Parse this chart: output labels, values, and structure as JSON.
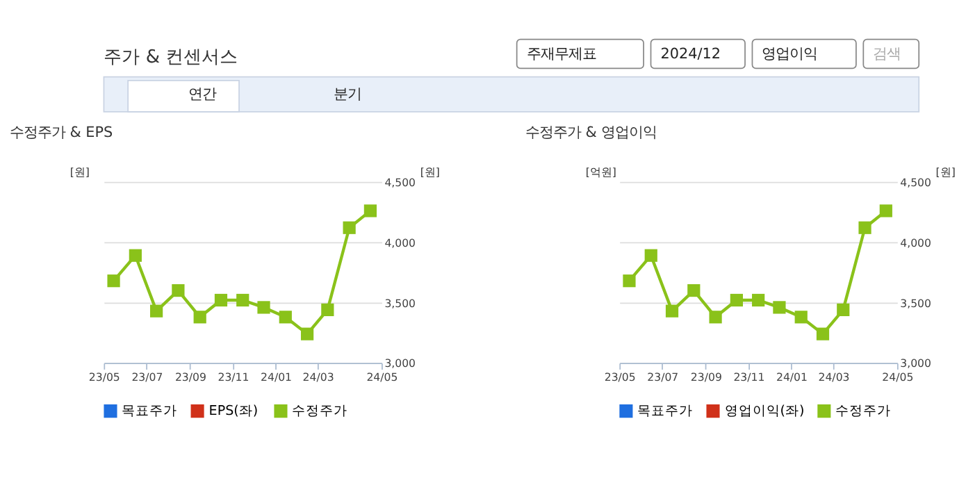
{
  "chart_data": [
    {
      "type": "line",
      "title": "수정주가 & EPS",
      "annotations": [
        "주가 & 컨센서스",
        "주재무제표",
        "2024/12",
        "영업이익",
        "검색",
        "연간",
        "분기"
      ],
      "ylabel": "[원]",
      "y2label": "[원]",
      "legend": "bottom",
      "grid": "y",
      "marker": "square",
      "x": [
        "2023-05-15",
        "2023-06-15",
        "2023-07-15",
        "2023-08-15",
        "2023-09-15",
        "2023-10-15",
        "2023-11-15",
        "2023-12-15",
        "2024-01-15",
        "2024-02-15",
        "2024-03-15",
        "2024-04-15",
        "2024-05-15"
      ],
      "xlim": [
        "2023-05-01",
        "2024-05-31"
      ],
      "xticks": [
        {
          "value": "2023-05-01",
          "label": "23/05"
        },
        {
          "value": "2023-07-01",
          "label": "23/07"
        },
        {
          "value": "2023-09-01",
          "label": "23/09"
        },
        {
          "value": "2023-11-01",
          "label": "23/11"
        },
        {
          "value": "2024-01-01",
          "label": "24/01"
        },
        {
          "value": "2024-03-01",
          "label": "24/03"
        },
        {
          "value": "2024-05-31",
          "label": "24/05"
        }
      ],
      "y2lim": [
        3000,
        4500
      ],
      "y2ticks": [
        {
          "value": 3000,
          "label": "3,000"
        },
        {
          "value": 3500,
          "label": "3,500"
        },
        {
          "value": 4000,
          "label": "4,000"
        },
        {
          "value": 4500,
          "label": "4,500"
        }
      ],
      "series": [
        {
          "name": "목표주가",
          "color": "#1f6fe0",
          "values": [
            null,
            null,
            null,
            null,
            null,
            null,
            null,
            null,
            null,
            null,
            null,
            null,
            null
          ]
        },
        {
          "name": "EPS(좌)",
          "color": "#d0311a",
          "values": [
            null,
            null,
            null,
            null,
            null,
            null,
            null,
            null,
            null,
            null,
            null,
            null,
            null
          ]
        },
        {
          "name": "수정주가",
          "color": "#8ac21a",
          "axis": "y2",
          "values": [
            3680,
            3890,
            3430,
            3600,
            3380,
            3520,
            3520,
            3460,
            3380,
            3240,
            3440,
            4120,
            4260
          ]
        }
      ]
    },
    {
      "type": "line",
      "title": "수정주가 & 영업이익",
      "ylabel": "[억원]",
      "y2label": "[원]",
      "legend": "bottom",
      "grid": "y",
      "marker": "square",
      "x": [
        "2023-05-15",
        "2023-06-15",
        "2023-07-15",
        "2023-08-15",
        "2023-09-15",
        "2023-10-15",
        "2023-11-15",
        "2023-12-15",
        "2024-01-15",
        "2024-02-15",
        "2024-03-15",
        "2024-04-15",
        "2024-05-15"
      ],
      "xlim": [
        "2023-05-01",
        "2024-05-31"
      ],
      "xticks": [
        {
          "value": "2023-05-01",
          "label": "23/05"
        },
        {
          "value": "2023-07-01",
          "label": "23/07"
        },
        {
          "value": "2023-09-01",
          "label": "23/09"
        },
        {
          "value": "2023-11-01",
          "label": "23/11"
        },
        {
          "value": "2024-01-01",
          "label": "24/01"
        },
        {
          "value": "2024-03-01",
          "label": "24/03"
        },
        {
          "value": "2024-05-31",
          "label": "24/05"
        }
      ],
      "y2lim": [
        3000,
        4500
      ],
      "y2ticks": [
        {
          "value": 3000,
          "label": "3,000"
        },
        {
          "value": 3500,
          "label": "3,500"
        },
        {
          "value": 4000,
          "label": "4,000"
        },
        {
          "value": 4500,
          "label": "4,500"
        }
      ],
      "series": [
        {
          "name": "목표주가",
          "color": "#1f6fe0",
          "values": [
            null,
            null,
            null,
            null,
            null,
            null,
            null,
            null,
            null,
            null,
            null,
            null,
            null
          ]
        },
        {
          "name": "영업이익(좌)",
          "color": "#d0311a",
          "values": [
            null,
            null,
            null,
            null,
            null,
            null,
            null,
            null,
            null,
            null,
            null,
            null,
            null
          ]
        },
        {
          "name": "수정주가",
          "color": "#8ac21a",
          "axis": "y2",
          "values": [
            3680,
            3890,
            3430,
            3600,
            3380,
            3520,
            3520,
            3460,
            3380,
            3240,
            3440,
            4120,
            4260
          ]
        }
      ]
    }
  ]
}
